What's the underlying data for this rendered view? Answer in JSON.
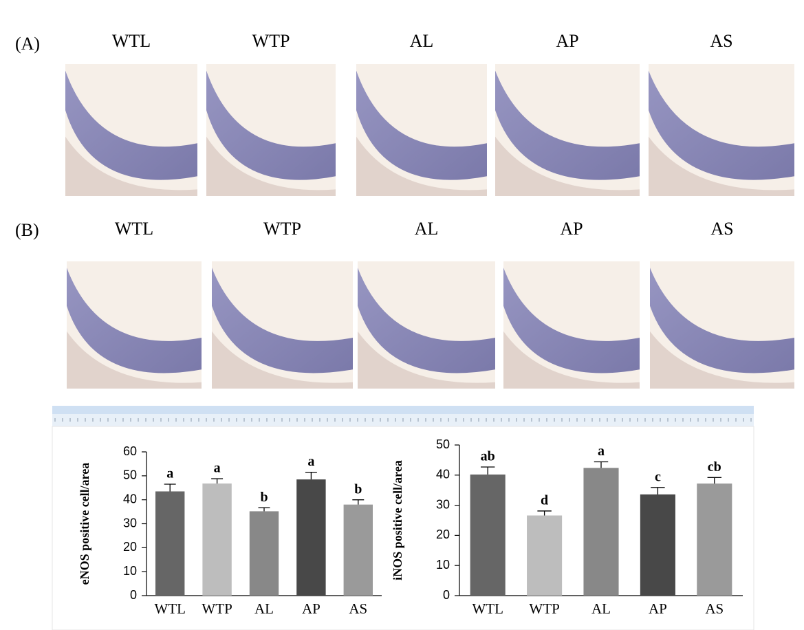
{
  "panels": [
    {
      "label": "(A)",
      "columns": [
        "WTL",
        "WTP",
        "AL",
        "AP",
        "AS"
      ]
    },
    {
      "label": "(B)",
      "columns": [
        "WTL",
        "WTP",
        "AL",
        "AP",
        "AS"
      ]
    }
  ],
  "chart_data": [
    {
      "type": "bar",
      "ylabel": "eNOS positive cell/area",
      "categories": [
        "WTL",
        "WTP",
        "AL",
        "AP",
        "AS"
      ],
      "values": [
        43.5,
        46.8,
        35.2,
        48.5,
        38.0
      ],
      "errors": [
        3.0,
        2.0,
        1.5,
        3.0,
        2.0
      ],
      "annotations": [
        "a",
        "a",
        "b",
        "a",
        "b"
      ],
      "colors": [
        "#666666",
        "#bdbdbd",
        "#888888",
        "#484848",
        "#9a9a9a"
      ],
      "ylim": [
        0,
        60
      ],
      "yticks": [
        0,
        10,
        20,
        30,
        40,
        50,
        60
      ]
    },
    {
      "type": "bar",
      "ylabel": "iNOS positive cell/area",
      "categories": [
        "WTL",
        "WTP",
        "AL",
        "AP",
        "AS"
      ],
      "values": [
        40.2,
        26.6,
        42.4,
        33.6,
        37.2
      ],
      "errors": [
        2.5,
        1.5,
        2.0,
        2.3,
        2.0
      ],
      "annotations": [
        "ab",
        "d",
        "a",
        "c",
        "cb"
      ],
      "colors": [
        "#666666",
        "#bdbdbd",
        "#888888",
        "#484848",
        "#9a9a9a"
      ],
      "ylim": [
        0,
        50
      ],
      "yticks": [
        0,
        10,
        20,
        30,
        40,
        50
      ]
    }
  ]
}
